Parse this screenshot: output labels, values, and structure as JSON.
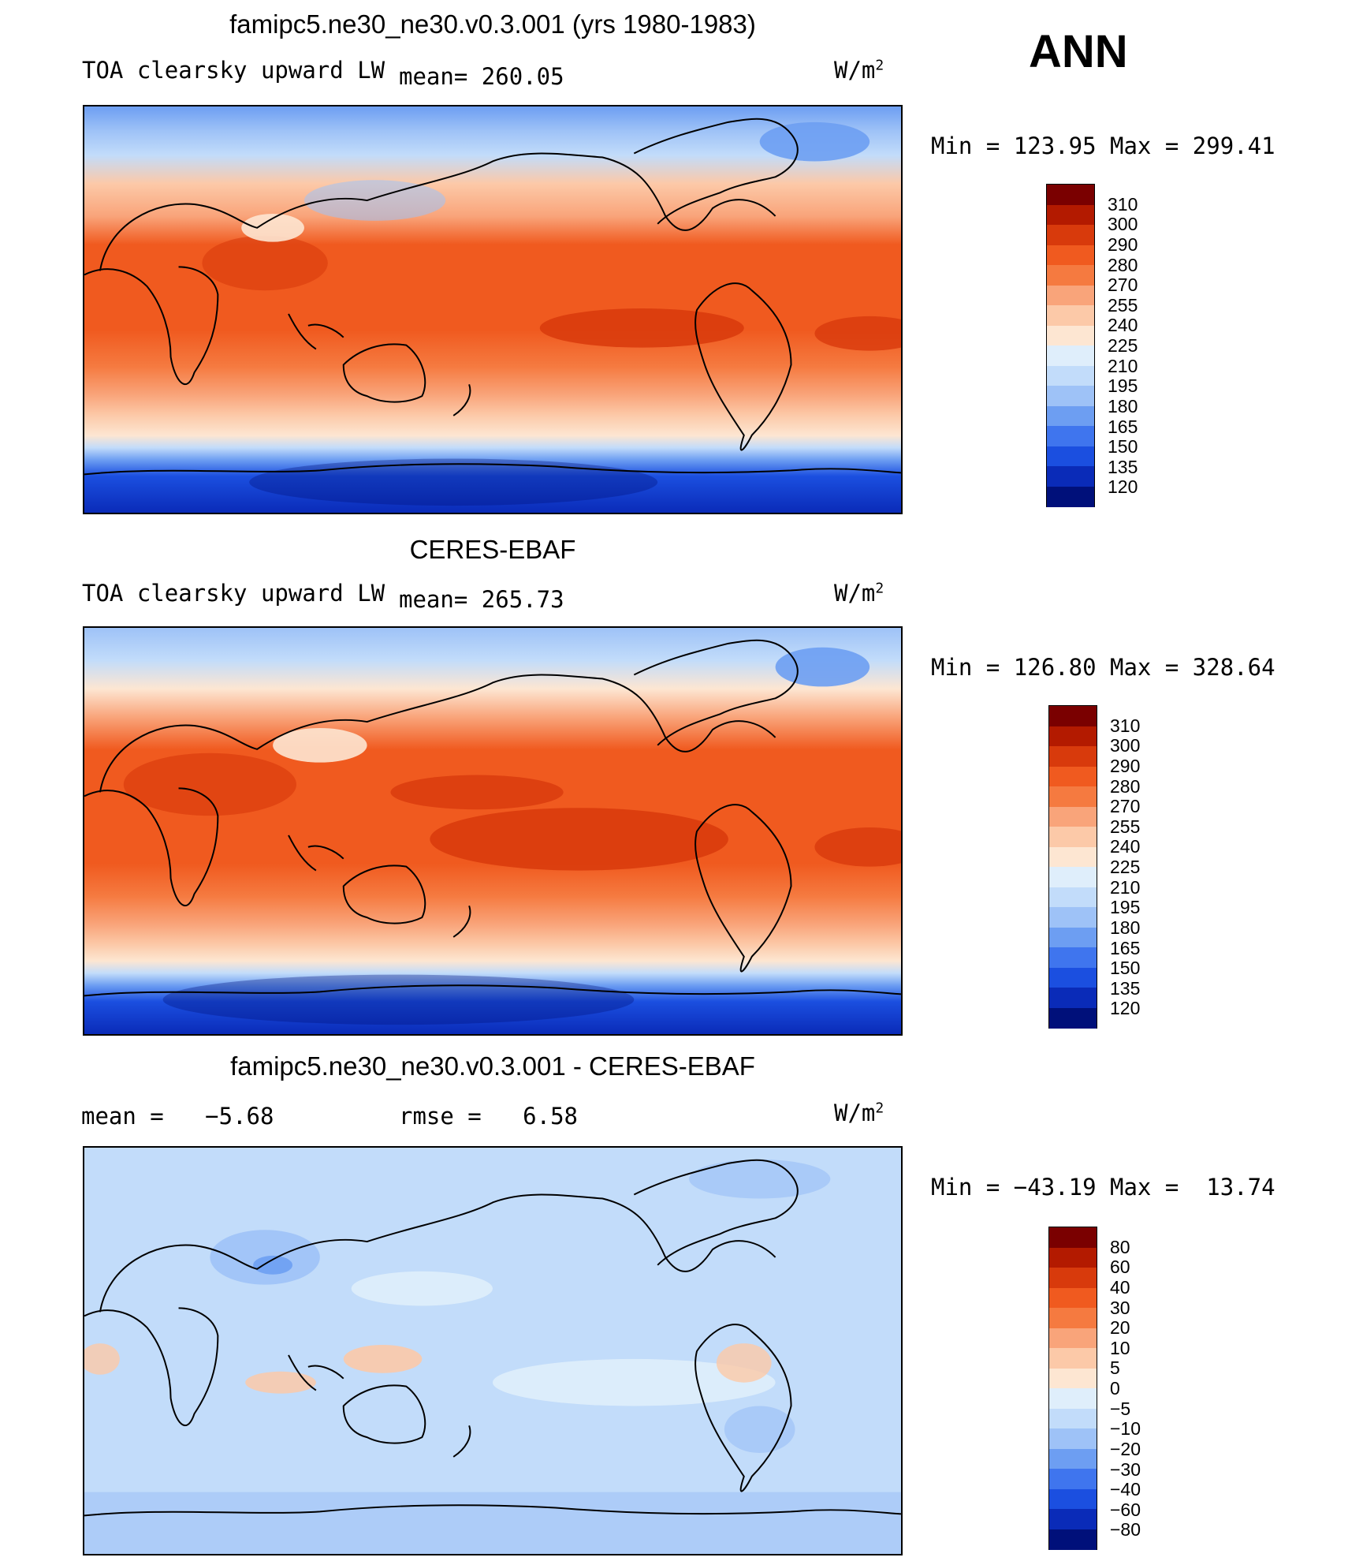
{
  "season": "ANN",
  "units_base": "W/m",
  "units_exp": "2",
  "panels": [
    {
      "title": "famipc5.ne30_ne30.v0.3.001 (yrs 1980-1983)",
      "variable": "TOA clearsky upward LW",
      "mean_label": "mean=",
      "mean": "260.05",
      "min_label": "Min  =",
      "min": "123.95",
      "max_label": "Max  =",
      "max": "299.41",
      "colorbar_labels": [
        "310",
        "300",
        "290",
        "280",
        "270",
        "255",
        "240",
        "225",
        "210",
        "195",
        "180",
        "165",
        "150",
        "135",
        "120"
      ]
    },
    {
      "title": "CERES-EBAF",
      "variable": "TOA clearsky upward LW",
      "mean_label": "mean=",
      "mean": "265.73",
      "min_label": "Min  =",
      "min": "126.80",
      "max_label": "Max  =",
      "max": "328.64",
      "colorbar_labels": [
        "310",
        "300",
        "290",
        "280",
        "270",
        "255",
        "240",
        "225",
        "210",
        "195",
        "180",
        "165",
        "150",
        "135",
        "120"
      ]
    },
    {
      "title": "famipc5.ne30_ne30.v0.3.001 - CERES-EBAF",
      "mean_label": "mean  =",
      "mean": "−5.68",
      "rmse_label": "rmse  =",
      "rmse": "6.58",
      "min_label": "Min  =",
      "min": "−43.19",
      "max_label": "Max  =",
      "max": "13.74",
      "colorbar_labels": [
        "80",
        "60",
        "40",
        "30",
        "20",
        "10",
        "5",
        "0",
        "−5",
        "−10",
        "−20",
        "−30",
        "−40",
        "−60",
        "−80"
      ]
    }
  ],
  "colors": {
    "abs_scale": [
      "#7a0000",
      "#b31a00",
      "#d83a0c",
      "#f05a1f",
      "#f57a40",
      "#f9a47a",
      "#fcc9a8",
      "#fde6d2",
      "#dfeefb",
      "#c2dcfa",
      "#9ec2f7",
      "#6d9ef2",
      "#3f75ee",
      "#1b4fe0",
      "#0a2bb8",
      "#00107a"
    ],
    "diff_scale": [
      "#7a0000",
      "#b31a00",
      "#d83a0c",
      "#f05a1f",
      "#f57a40",
      "#f9a47a",
      "#fcc9a8",
      "#fde6d2",
      "#dfeefb",
      "#c2dcfa",
      "#9ec2f7",
      "#6d9ef2",
      "#3f75ee",
      "#1b4fe0",
      "#0a2bb8",
      "#00107a"
    ],
    "outline": "#000000"
  }
}
